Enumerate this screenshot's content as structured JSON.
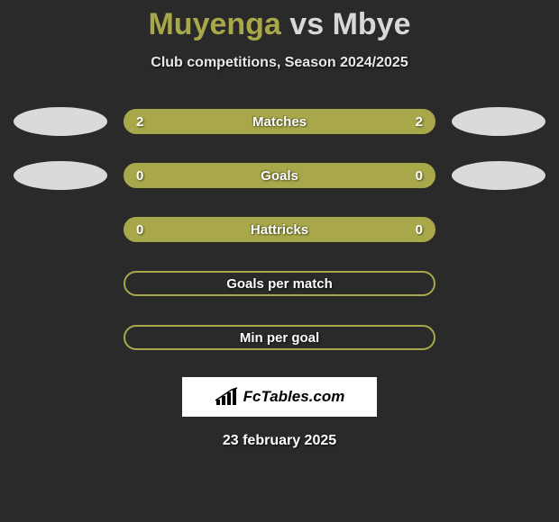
{
  "title": {
    "player1": "Muyenga",
    "vs": "vs",
    "player2": "Mbye"
  },
  "subtitle": "Club competitions, Season 2024/2025",
  "colors": {
    "accent": "#a8a84a",
    "background": "#2a2a2a",
    "ellipse": "#dadada",
    "text_light": "#ffffff"
  },
  "stats": [
    {
      "label": "Matches",
      "left_value": "2",
      "right_value": "2",
      "filled": true,
      "show_left_ellipse": true,
      "show_right_ellipse": true
    },
    {
      "label": "Goals",
      "left_value": "0",
      "right_value": "0",
      "filled": true,
      "show_left_ellipse": true,
      "show_right_ellipse": true
    },
    {
      "label": "Hattricks",
      "left_value": "0",
      "right_value": "0",
      "filled": true,
      "show_left_ellipse": false,
      "show_right_ellipse": false
    },
    {
      "label": "Goals per match",
      "left_value": "",
      "right_value": "",
      "filled": false,
      "show_left_ellipse": false,
      "show_right_ellipse": false
    },
    {
      "label": "Min per goal",
      "left_value": "",
      "right_value": "",
      "filled": false,
      "show_left_ellipse": false,
      "show_right_ellipse": false
    }
  ],
  "logo_text": "FcTables.com",
  "date": "23 february 2025"
}
